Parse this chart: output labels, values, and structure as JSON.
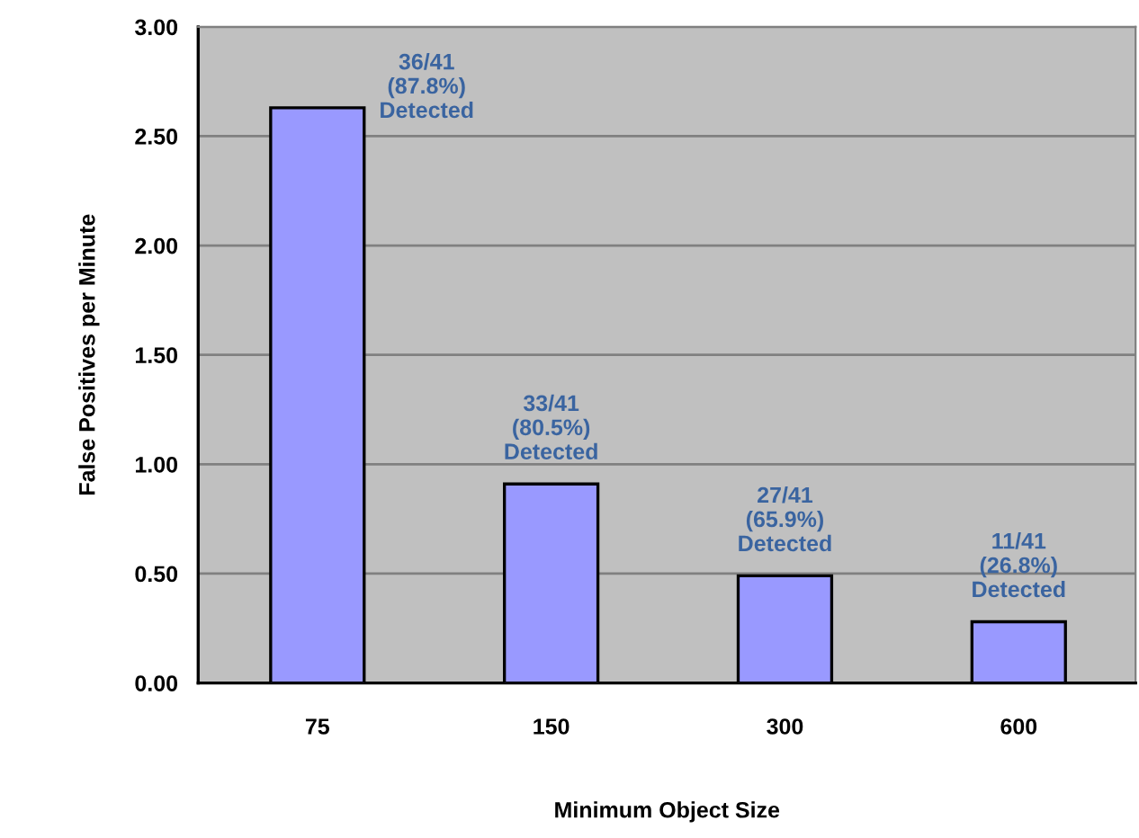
{
  "chart_data": {
    "type": "bar",
    "xlabel": "Minimum Object Size",
    "ylabel": "False Positives per Minute",
    "categories": [
      "75",
      "150",
      "300",
      "600"
    ],
    "values": [
      2.63,
      0.91,
      0.49,
      0.28
    ],
    "color": "#9999ff",
    "ylim": [
      0,
      3
    ],
    "yticks": [
      {
        "value": 0,
        "label": "0.00"
      },
      {
        "value": 0.5,
        "label": "0.50"
      },
      {
        "value": 1,
        "label": "1.00"
      },
      {
        "value": 1.5,
        "label": "1.50"
      },
      {
        "value": 2,
        "label": "2.00"
      },
      {
        "value": 2.5,
        "label": "2.50"
      },
      {
        "value": 3,
        "label": "3.00"
      }
    ],
    "grid": "y",
    "annotations": [
      {
        "text": "36/41\n(87.8%)\nDetected",
        "x": "75",
        "y": 2.63
      },
      {
        "text": "33/41\n(80.5%)\nDetected",
        "x": "150",
        "y": 0.91
      },
      {
        "text": "27/41\n(65.9%)\nDetected",
        "x": "300",
        "y": 0.49
      },
      {
        "text": "11/41\n(26.8%)\nDetected",
        "x": "600",
        "y": 0.28
      }
    ]
  }
}
